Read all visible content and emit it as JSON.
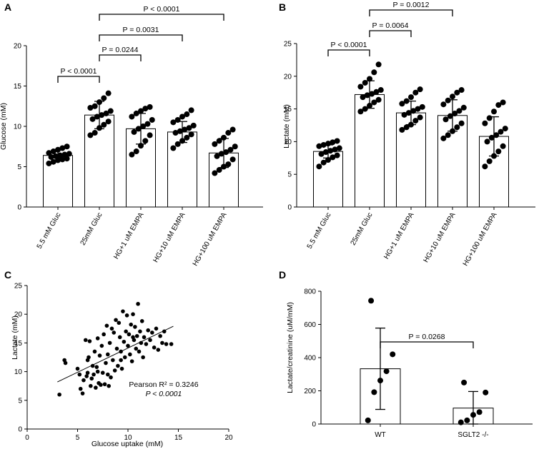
{
  "chart_data": [
    {
      "panel": "A",
      "type": "bar",
      "ylabel": "Glucose (mM)",
      "ylim": [
        0,
        20
      ],
      "yticks": [
        0,
        5,
        10,
        15,
        20
      ],
      "categories": [
        "5.5 mM Gluc",
        "25mM Gluc",
        "HG+1 uM EMPA",
        "HG+10 uM EMPA",
        "HG+100 uM EMPA"
      ],
      "values": [
        6.4,
        11.4,
        9.7,
        9.3,
        6.7
      ],
      "sd": [
        0.7,
        1.7,
        1.9,
        1.3,
        1.8
      ],
      "points": [
        [
          5.4,
          5.6,
          5.8,
          5.9,
          6.0,
          6.2,
          6.3,
          6.4,
          6.5,
          6.6,
          6.7,
          6.9,
          7.1,
          7.3,
          7.5
        ],
        [
          8.9,
          9.2,
          9.8,
          10.2,
          10.6,
          10.9,
          11.2,
          11.4,
          11.6,
          11.9,
          12.3,
          12.5,
          13.0,
          13.5,
          14.1
        ],
        [
          6.5,
          6.9,
          7.6,
          8.2,
          8.9,
          9.3,
          9.7,
          10.0,
          10.3,
          10.8,
          11.2,
          11.6,
          11.9,
          12.2,
          12.4
        ],
        [
          7.3,
          7.8,
          8.2,
          8.6,
          9.0,
          9.2,
          9.4,
          9.6,
          9.8,
          10.1,
          10.5,
          10.8,
          11.2,
          11.5,
          12.0
        ],
        [
          4.2,
          4.6,
          5.0,
          5.3,
          5.9,
          6.3,
          6.6,
          6.8,
          7.1,
          7.5,
          7.8,
          8.2,
          8.6,
          9.2,
          9.6
        ]
      ],
      "comparisons": [
        {
          "from": 0,
          "to": 1,
          "label": "P < 0.0001"
        },
        {
          "from": 1,
          "to": 2,
          "label": "P = 0.0244"
        },
        {
          "from": 1,
          "to": 3,
          "label": "P = 0.0031"
        },
        {
          "from": 1,
          "to": 4,
          "label": "P < 0.0001"
        }
      ]
    },
    {
      "panel": "B",
      "type": "bar",
      "ylabel": "Lactate (mM)",
      "ylim": [
        0,
        25
      ],
      "yticks": [
        0,
        5,
        10,
        15,
        20,
        25
      ],
      "categories": [
        "5.5 mM Gluc",
        "25mM Gluc",
        "HG+1 uM EMPA",
        "HG+10 uM EMPA",
        "HG+100 uM EMPA"
      ],
      "values": [
        8.5,
        17.2,
        14.4,
        14.0,
        10.8
      ],
      "sd": [
        1.0,
        2.1,
        1.8,
        2.4,
        3.0
      ],
      "points": [
        [
          6.2,
          6.8,
          7.2,
          7.6,
          7.9,
          8.1,
          8.4,
          8.6,
          8.8,
          9.0,
          9.3,
          9.5,
          9.7,
          9.9,
          10.1
        ],
        [
          14.6,
          15.0,
          15.5,
          16.0,
          16.4,
          16.8,
          17.1,
          17.3,
          17.6,
          17.9,
          18.4,
          19.0,
          19.6,
          20.6,
          21.8
        ],
        [
          11.8,
          12.2,
          12.6,
          13.2,
          13.7,
          14.1,
          14.4,
          14.7,
          15.0,
          15.3,
          15.8,
          16.2,
          16.8,
          17.5,
          18.0
        ],
        [
          10.5,
          11.0,
          11.6,
          12.2,
          12.8,
          13.4,
          13.9,
          14.3,
          14.7,
          15.2,
          15.7,
          16.3,
          16.9,
          17.5,
          17.9
        ],
        [
          6.2,
          7.0,
          7.8,
          8.5,
          9.3,
          10.0,
          10.6,
          11.0,
          11.5,
          12.0,
          12.8,
          13.6,
          14.6,
          15.6,
          16.0
        ]
      ],
      "comparisons": [
        {
          "from": 0,
          "to": 1,
          "label": "P < 0.0001"
        },
        {
          "from": 1,
          "to": 2,
          "label": "P = 0.0064"
        },
        {
          "from": 1,
          "to": 3,
          "label": "P = 0.0012"
        },
        {
          "from": 1,
          "to": 4,
          "label": "P < 0.0001"
        }
      ]
    },
    {
      "panel": "C",
      "type": "scatter",
      "xlabel": "Glucose uptake (mM)",
      "ylabel": "Lactate (mM)",
      "xlim": [
        0,
        20
      ],
      "ylim": [
        0,
        25
      ],
      "xticks": [
        0,
        5,
        10,
        15,
        20
      ],
      "yticks": [
        0,
        5,
        10,
        15,
        20,
        25
      ],
      "fit": {
        "x0": 3.0,
        "y0": 8.2,
        "x1": 14.5,
        "y1": 17.9
      },
      "annotation": [
        "Pearson R² = 0.3246",
        "P < 0.0001"
      ],
      "points": [
        [
          3.2,
          6.0
        ],
        [
          3.7,
          12.0
        ],
        [
          3.8,
          11.5
        ],
        [
          5.0,
          10.5
        ],
        [
          5.2,
          9.5
        ],
        [
          5.3,
          7.0
        ],
        [
          5.5,
          6.2
        ],
        [
          5.6,
          8.5
        ],
        [
          5.8,
          15.5
        ],
        [
          5.9,
          9.2
        ],
        [
          6.0,
          9.8
        ],
        [
          6.1,
          12.5
        ],
        [
          6.2,
          15.3
        ],
        [
          6.3,
          7.5
        ],
        [
          6.4,
          8.8
        ],
        [
          6.5,
          11.0
        ],
        [
          6.6,
          9.5
        ],
        [
          6.7,
          13.5
        ],
        [
          6.8,
          7.2
        ],
        [
          6.9,
          10.8
        ],
        [
          7.0,
          15.8
        ],
        [
          7.1,
          8.0
        ],
        [
          7.2,
          12.8
        ],
        [
          7.3,
          7.7
        ],
        [
          7.4,
          14.5
        ],
        [
          7.5,
          9.8
        ],
        [
          7.6,
          16.5
        ],
        [
          7.7,
          7.8
        ],
        [
          7.8,
          11.5
        ],
        [
          7.9,
          18.0
        ],
        [
          8.0,
          13.0
        ],
        [
          8.1,
          7.5
        ],
        [
          8.2,
          15.0
        ],
        [
          8.3,
          9.0
        ],
        [
          8.4,
          17.5
        ],
        [
          8.5,
          12.0
        ],
        [
          8.6,
          16.8
        ],
        [
          8.7,
          10.2
        ],
        [
          8.8,
          19.0
        ],
        [
          8.9,
          14.0
        ],
        [
          9.0,
          11.0
        ],
        [
          9.1,
          18.5
        ],
        [
          9.2,
          16.0
        ],
        [
          9.3,
          13.5
        ],
        [
          9.4,
          10.5
        ],
        [
          9.5,
          20.5
        ],
        [
          9.6,
          15.2
        ],
        [
          9.7,
          12.5
        ],
        [
          9.8,
          17.0
        ],
        [
          9.9,
          19.8
        ],
        [
          10.0,
          14.5
        ],
        [
          10.1,
          16.5
        ],
        [
          10.2,
          13.0
        ],
        [
          10.3,
          18.2
        ],
        [
          10.4,
          11.8
        ],
        [
          10.5,
          20.0
        ],
        [
          10.6,
          15.5
        ],
        [
          10.7,
          17.8
        ],
        [
          10.8,
          14.0
        ],
        [
          10.9,
          16.2
        ],
        [
          11.0,
          21.8
        ],
        [
          11.1,
          13.5
        ],
        [
          11.2,
          17.0
        ],
        [
          11.3,
          15.0
        ],
        [
          11.4,
          18.8
        ],
        [
          11.5,
          12.5
        ],
        [
          11.6,
          16.0
        ],
        [
          11.8,
          14.8
        ],
        [
          12.0,
          17.2
        ],
        [
          12.2,
          15.5
        ],
        [
          12.4,
          16.8
        ],
        [
          12.6,
          14.2
        ],
        [
          12.8,
          17.5
        ],
        [
          13.0,
          13.8
        ],
        [
          13.2,
          16.2
        ],
        [
          13.4,
          15.0
        ],
        [
          13.6,
          17.0
        ],
        [
          13.8,
          14.8
        ],
        [
          14.3,
          14.8
        ],
        [
          9.3,
          12.0
        ],
        [
          7.0,
          10.0
        ],
        [
          8.0,
          9.5
        ],
        [
          6.0,
          12.0
        ],
        [
          10.5,
          16.0
        ]
      ]
    },
    {
      "panel": "D",
      "type": "bar",
      "ylabel": "Lactate/creatinine (uM/mM)",
      "ylim": [
        0,
        800
      ],
      "yticks": [
        0,
        200,
        400,
        600,
        800
      ],
      "categories": [
        "WT",
        "SGLT2 -/-"
      ],
      "values": [
        333,
        96
      ],
      "sd": [
        245,
        100
      ],
      "points": [
        [
          22,
          192,
          262,
          318,
          420,
          743
        ],
        [
          10,
          22,
          55,
          72,
          190,
          250
        ]
      ],
      "comparisons": [
        {
          "from": 0,
          "to": 1,
          "label": "P = 0.0268"
        }
      ]
    }
  ]
}
